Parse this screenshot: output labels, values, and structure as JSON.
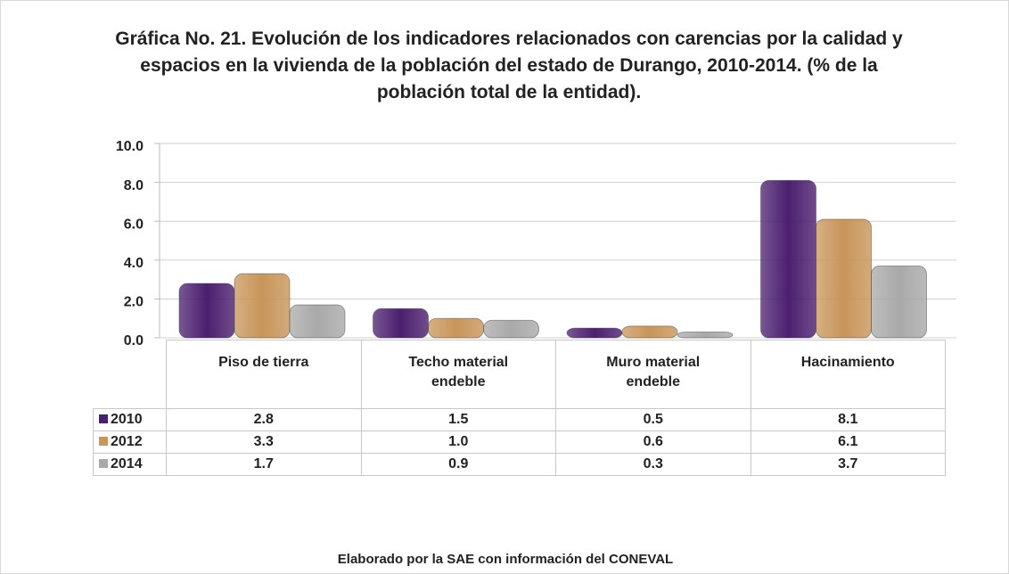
{
  "chart_data": {
    "type": "bar",
    "title": "Gráfica No. 21. Evolución de los indicadores relacionados con carencias por la calidad y espacios en la vivienda de la población del estado de Durango, 2010-2014. (% de la población total de la entidad).",
    "categories": [
      "Piso de tierra",
      "Techo material endeble",
      "Muro material endeble",
      "Hacinamiento"
    ],
    "series": [
      {
        "name": "2010",
        "color": "#4b1f6f",
        "values": [
          2.8,
          1.5,
          0.5,
          8.1
        ],
        "value_labels": [
          "2.8",
          "1.5",
          "0.5",
          "8.1"
        ]
      },
      {
        "name": "2012",
        "color": "#c8955a",
        "values": [
          3.3,
          1.0,
          0.6,
          6.1
        ],
        "value_labels": [
          "3.3",
          "1.0",
          "0.6",
          "6.1"
        ]
      },
      {
        "name": "2014",
        "color": "#a9a9a9",
        "values": [
          1.7,
          0.9,
          0.3,
          3.7
        ],
        "value_labels": [
          "1.7",
          "0.9",
          "0.3",
          "3.7"
        ]
      }
    ],
    "ylim": [
      0,
      10
    ],
    "yticks": [
      {
        "value": 0,
        "label": "0.0"
      },
      {
        "value": 2,
        "label": "2.0"
      },
      {
        "value": 4,
        "label": "4.0"
      },
      {
        "value": 6,
        "label": "6.0"
      },
      {
        "value": 8,
        "label": "8.0"
      },
      {
        "value": 10,
        "label": "10.0"
      }
    ],
    "grid": true,
    "source": "Elaborado por la SAE con información del CONEVAL"
  }
}
